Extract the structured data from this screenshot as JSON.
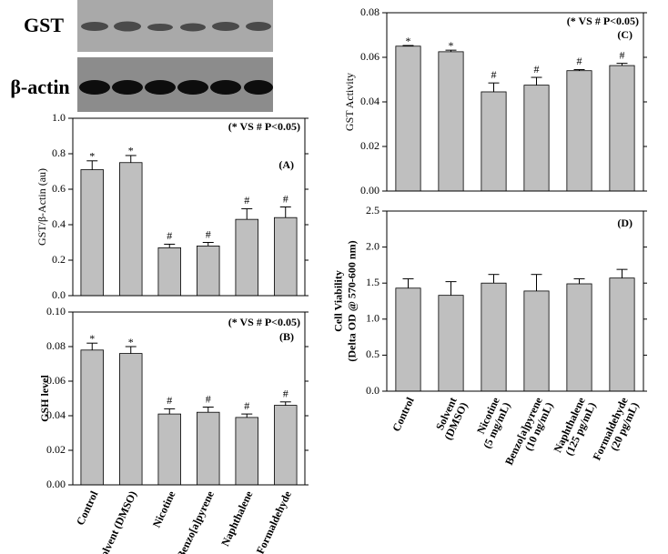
{
  "blots": {
    "labels": [
      "GST",
      "β-actin"
    ]
  },
  "chart_data": [
    {
      "type": "bar",
      "panel": "(A)",
      "annotation": "(* VS # P<0.05)",
      "ylabel": [
        "GST/β-Actin (au)"
      ],
      "values": [
        0.71,
        0.75,
        0.27,
        0.28,
        0.43,
        0.44
      ],
      "errors": [
        0.05,
        0.04,
        0.02,
        0.02,
        0.06,
        0.06
      ],
      "markers": [
        "*",
        "*",
        "#",
        "#",
        "#",
        "#"
      ],
      "color": "#bfbfbf",
      "ylim": [
        0,
        1
      ],
      "yticks": [
        {
          "value": 0,
          "label": "0.0"
        },
        0.2,
        0.4,
        0.6,
        0.8,
        {
          "value": 1,
          "label": "1.0"
        }
      ]
    },
    {
      "type": "bar",
      "panel": "(B)",
      "annotation": "(* VS # P<0.05)",
      "ylabel": [
        "GSH level"
      ],
      "categories": [
        [
          "Control"
        ],
        [
          "Solvent (DMSO)"
        ],
        [
          "Nicotine"
        ],
        [
          "Benzo[a]pyrene"
        ],
        [
          "Naphthalene"
        ],
        [
          "Formaldehyde"
        ]
      ],
      "values": [
        0.078,
        0.076,
        0.041,
        0.042,
        0.039,
        0.046
      ],
      "errors": [
        0.004,
        0.004,
        0.003,
        0.003,
        0.002,
        0.002
      ],
      "markers": [
        "*",
        "*",
        "#",
        "#",
        "#",
        "#"
      ],
      "color": "#bfbfbf",
      "ylim": [
        0,
        0.1
      ],
      "yticks": [
        {
          "value": 0,
          "label": "0.00"
        },
        0.02,
        0.04,
        0.06,
        0.08,
        {
          "value": 0.1,
          "label": "0.10"
        }
      ]
    },
    {
      "type": "bar",
      "panel": "(C)",
      "annotation": "(* VS # P<0.05)",
      "ylabel": [
        "GST Activity"
      ],
      "values": [
        0.065,
        0.0625,
        0.0445,
        0.0475,
        0.054,
        0.0563
      ],
      "errors": [
        0.0003,
        0.0007,
        0.004,
        0.0035,
        0.0005,
        0.001
      ],
      "markers": [
        "*",
        "*",
        "#",
        "#",
        "#",
        "#"
      ],
      "color": "#bfbfbf",
      "ylim": [
        0,
        0.08
      ],
      "yticks": [
        {
          "value": 0,
          "label": "0.00"
        },
        0.02,
        0.04,
        0.06,
        0.08
      ]
    },
    {
      "type": "bar",
      "panel": "(D)",
      "ylabel": [
        "Cell Viability",
        "(Delta OD @ 570-600 nm)"
      ],
      "categories": [
        [
          "Control"
        ],
        [
          "Solvent",
          "(DMSO)"
        ],
        [
          "Nicotine",
          "(5 mg/mL)"
        ],
        [
          "Benzo[a]pyrene",
          "(10 ng/mL)"
        ],
        [
          "Naphthalene",
          "(125 pg/mL)"
        ],
        [
          "Formaldehyde",
          "(20 pg/mL)"
        ]
      ],
      "values": [
        1.43,
        1.33,
        1.5,
        1.39,
        1.49,
        1.57
      ],
      "errors": [
        0.13,
        0.19,
        0.12,
        0.23,
        0.07,
        0.12
      ],
      "color": "#bfbfbf",
      "ylim": [
        0,
        2.5
      ],
      "yticks": [
        {
          "value": 0,
          "label": "0.0"
        },
        0.5,
        {
          "value": 1,
          "label": "1.0"
        },
        1.5,
        {
          "value": 2,
          "label": "2.0"
        },
        2.5
      ]
    }
  ]
}
